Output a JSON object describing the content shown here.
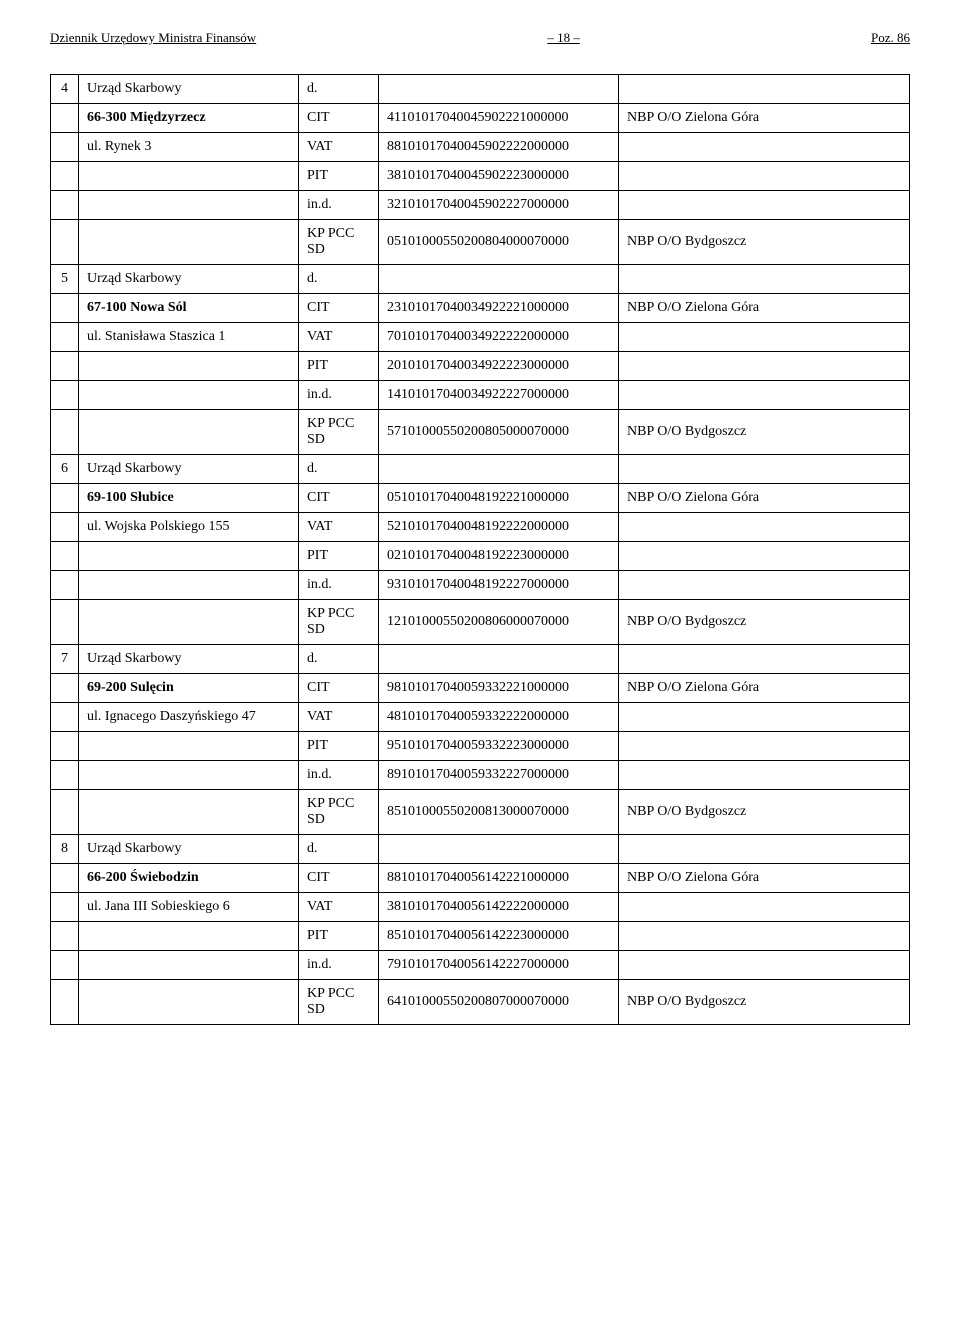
{
  "header": {
    "left": "Dziennik Urzędowy Ministra Finansów",
    "center": "– 18 –",
    "right": "Poz. 86"
  },
  "blocks": [
    {
      "num": "4",
      "office": "Urząd Skarbowy",
      "office_mark": "d.",
      "city_bold": "66-300 Międzyrzecz",
      "city_tax": "CIT",
      "city_acct": "41101017040045902221000000",
      "city_bank": "NBP O/O Zielona Góra",
      "street": "ul. Rynek 3",
      "street_tax": "VAT",
      "street_acct": "88101017040045902222000000",
      "pit_tax": "PIT",
      "pit_acct": "38101017040045902223000000",
      "ind_tax": "in.d.",
      "ind_acct": "32101017040045902227000000",
      "kp_tax": "KP PCC SD",
      "kp_acct": "05101000550200804000070000",
      "kp_bank": "NBP O/O Bydgoszcz"
    },
    {
      "num": "5",
      "office": "Urząd Skarbowy",
      "office_mark": "d.",
      "city_bold": "67-100 Nowa Sól",
      "city_tax": "CIT",
      "city_acct": "23101017040034922221000000",
      "city_bank": "NBP O/O Zielona Góra",
      "street": "ul. Stanisława Staszica 1",
      "street_tax": "VAT",
      "street_acct": "70101017040034922222000000",
      "pit_tax": "PIT",
      "pit_acct": "20101017040034922223000000",
      "ind_tax": "in.d.",
      "ind_acct": "14101017040034922227000000",
      "kp_tax": "KP PCC SD",
      "kp_acct": "57101000550200805000070000",
      "kp_bank": "NBP O/O Bydgoszcz"
    },
    {
      "num": "6",
      "office": "Urząd Skarbowy",
      "office_mark": "d.",
      "city_bold": "69-100 Słubice",
      "city_tax": "CIT",
      "city_acct": "05101017040048192221000000",
      "city_bank": "NBP O/O Zielona Góra",
      "street": "ul. Wojska Polskiego 155",
      "street_tax": "VAT",
      "street_acct": "52101017040048192222000000",
      "pit_tax": "PIT",
      "pit_acct": "02101017040048192223000000",
      "ind_tax": "in.d.",
      "ind_acct": "93101017040048192227000000",
      "kp_tax": "KP PCC SD",
      "kp_acct": "12101000550200806000070000",
      "kp_bank": "NBP O/O Bydgoszcz"
    },
    {
      "num": "7",
      "office": "Urząd Skarbowy",
      "office_mark": "d.",
      "city_bold": "69-200 Sulęcin",
      "city_tax": "CIT",
      "city_acct": "98101017040059332221000000",
      "city_bank": "NBP O/O Zielona Góra",
      "street": "ul. Ignacego Daszyńskiego 47",
      "street_tax": "VAT",
      "street_acct": "48101017040059332222000000",
      "pit_tax": "PIT",
      "pit_acct": "95101017040059332223000000",
      "ind_tax": "in.d.",
      "ind_acct": "89101017040059332227000000",
      "kp_tax": "KP PCC SD",
      "kp_acct": "85101000550200813000070000",
      "kp_bank": "NBP O/O Bydgoszcz"
    },
    {
      "num": "8",
      "office": "Urząd Skarbowy",
      "office_mark": "d.",
      "city_bold": "66-200 Świebodzin",
      "city_tax": "CIT",
      "city_acct": "88101017040056142221000000",
      "city_bank": "NBP O/O Zielona Góra",
      "street": "ul. Jana III Sobieskiego 6",
      "street_tax": "VAT",
      "street_acct": "38101017040056142222000000",
      "pit_tax": "PIT",
      "pit_acct": "85101017040056142223000000",
      "ind_tax": "in.d.",
      "ind_acct": "79101017040056142227000000",
      "kp_tax": "KP PCC SD",
      "kp_acct": "64101000550200807000070000",
      "kp_bank": "NBP O/O Bydgoszcz"
    }
  ]
}
